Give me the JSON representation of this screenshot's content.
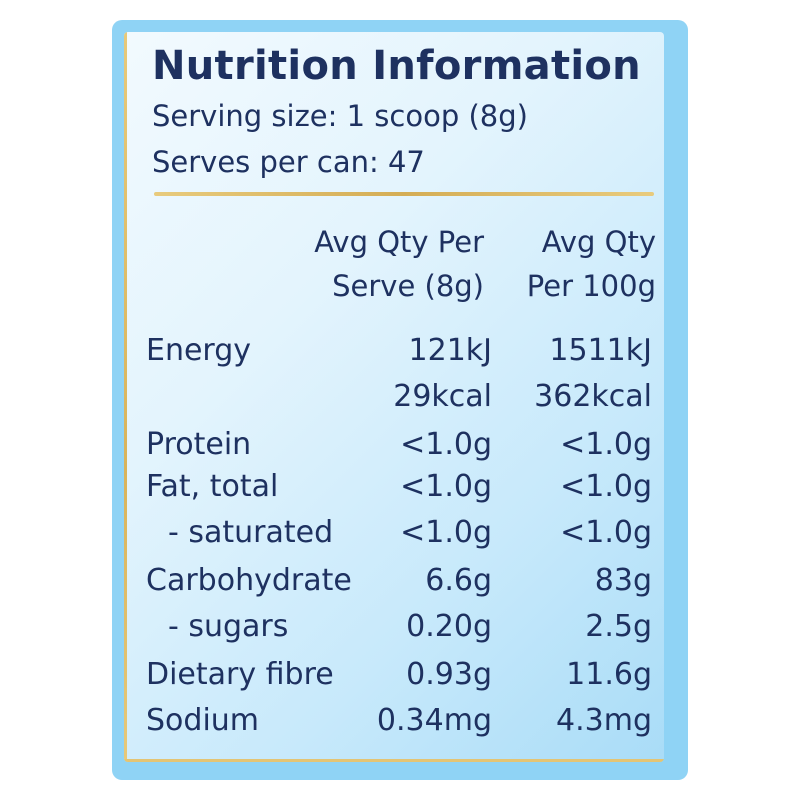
{
  "panel": {
    "title": "Nutrition Information",
    "serving_size": "Serving size: 1 scoop (8g)",
    "serves_per_can": "Serves per can: 47"
  },
  "table": {
    "headers": {
      "serve_line1": "Avg Qty Per",
      "serve_line2": "Serve (8g)",
      "per100_line1": "Avg Qty",
      "per100_line2": "Per 100g"
    },
    "rows": [
      {
        "label": "Energy",
        "serve": "121kJ",
        "per100": "1511kJ"
      },
      {
        "label": "",
        "serve": "29kcal",
        "per100": "362kcal"
      },
      {
        "label": "Protein",
        "serve": "<1.0g",
        "per100": "<1.0g"
      },
      {
        "label": "Fat, total",
        "serve": "<1.0g",
        "per100": "<1.0g"
      },
      {
        "label": "- saturated",
        "serve": "<1.0g",
        "per100": "<1.0g"
      },
      {
        "label": "Carbohydrate",
        "serve": "6.6g",
        "per100": "83g"
      },
      {
        "label": "- sugars",
        "serve": "0.20g",
        "per100": "2.5g"
      },
      {
        "label": "Dietary fibre",
        "serve": "0.93g",
        "per100": "11.6g"
      },
      {
        "label": "Sodium",
        "serve": "0.34mg",
        "per100": "4.3mg"
      }
    ]
  },
  "colors": {
    "text": "#1e3160",
    "frame": "#8fd3f5",
    "accent_gold": "#d9b35a"
  }
}
